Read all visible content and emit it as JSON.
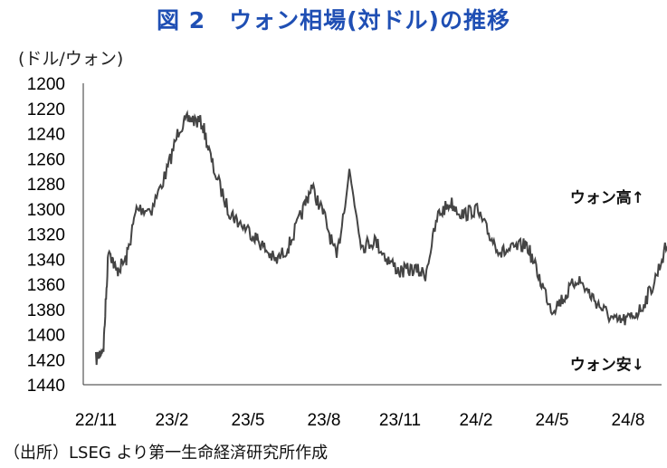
{
  "title": "図 2　ウォン相場(対ドル)の推移",
  "unit_label": "(ドル/ウォン)",
  "source": "（出所）LSEG より第一生命経済研究所作成",
  "chart_data": {
    "type": "line",
    "title": "図 2　ウォン相場(対ドル)の推移",
    "ylabel": "(ドル/ウォン)",
    "y_inverted": true,
    "ylim": [
      1200,
      1440
    ],
    "yticks": [
      1200,
      1220,
      1240,
      1260,
      1280,
      1300,
      1320,
      1340,
      1360,
      1380,
      1400,
      1420,
      1440
    ],
    "xticks": [
      "22/11",
      "23/2",
      "23/5",
      "23/8",
      "23/11",
      "24/2",
      "24/5",
      "24/8"
    ],
    "grid": false,
    "color": "#444444",
    "annotations": [
      {
        "text": "ウォン高↑",
        "at_y": 1295
      },
      {
        "text": "ウォン安↓",
        "at_y": 1428
      }
    ],
    "x_month_index": [
      0,
      0.3,
      0.5,
      0.8,
      1.2,
      1.6,
      2.2,
      2.8,
      3.3,
      3.7,
      4.2,
      4.6,
      5.2,
      5.6,
      6.2,
      6.6,
      7.1,
      7.6,
      8.1,
      8.5,
      9.0,
      9.5,
      10.0,
      10.5,
      11.0,
      11.5,
      12.0,
      12.5,
      13.0,
      13.5,
      14.0,
      14.5,
      15.0,
      15.5,
      16.0,
      16.5,
      17.0,
      17.5,
      18.0,
      18.5,
      19.0,
      19.5,
      20.0,
      20.5,
      21.0,
      21.5,
      22.0,
      22.5,
      23.0,
      23.2
    ],
    "values": [
      1420,
      1410,
      1330,
      1350,
      1340,
      1300,
      1300,
      1270,
      1235,
      1228,
      1232,
      1265,
      1300,
      1310,
      1320,
      1330,
      1342,
      1330,
      1305,
      1282,
      1305,
      1340,
      1270,
      1330,
      1325,
      1340,
      1350,
      1348,
      1352,
      1305,
      1295,
      1305,
      1300,
      1320,
      1335,
      1332,
      1328,
      1355,
      1380,
      1370,
      1355,
      1368,
      1380,
      1390,
      1388,
      1380,
      1360,
      1330,
      1338,
      1340
    ]
  }
}
